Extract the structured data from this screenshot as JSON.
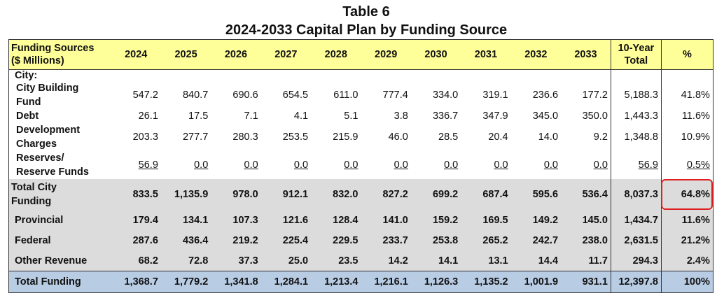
{
  "title": {
    "line1": "Table 6",
    "line2": "2024-2033 Capital Plan by Funding Source"
  },
  "header": {
    "label": [
      "Funding Sources",
      "($ Millions)"
    ],
    "years": [
      "2024",
      "2025",
      "2026",
      "2027",
      "2028",
      "2029",
      "2030",
      "2031",
      "2032",
      "2033"
    ],
    "total": [
      "10-Year",
      "Total"
    ],
    "pct": "%"
  },
  "city_label": "City:",
  "city_rows": [
    {
      "label": [
        "City Building",
        "Fund"
      ],
      "values": [
        "547.2",
        "840.7",
        "690.6",
        "654.5",
        "611.0",
        "777.4",
        "334.0",
        "319.1",
        "236.6",
        "177.2"
      ],
      "total": "5,188.3",
      "pct": "41.8%",
      "underline": false
    },
    {
      "label": [
        "Debt"
      ],
      "values": [
        "26.1",
        "17.5",
        "7.1",
        "4.1",
        "5.1",
        "3.8",
        "336.7",
        "347.9",
        "345.0",
        "350.0"
      ],
      "total": "1,443.3",
      "pct": "11.6%",
      "underline": false
    },
    {
      "label": [
        "Development",
        "Charges"
      ],
      "values": [
        "203.3",
        "277.7",
        "280.3",
        "253.5",
        "215.9",
        "46.0",
        "28.5",
        "20.4",
        "14.0",
        "9.2"
      ],
      "total": "1,348.8",
      "pct": "10.9%",
      "underline": false
    },
    {
      "label": [
        "Reserves/",
        "Reserve Funds"
      ],
      "values": [
        "56.9",
        "0.0",
        "0.0",
        "0.0",
        "0.0",
        "0.0",
        "0.0",
        "0.0",
        "0.0",
        "0.0"
      ],
      "total": "56.9",
      "pct": "0.5%",
      "underline": true
    }
  ],
  "total_city": {
    "label": [
      "Total City",
      "Funding"
    ],
    "values": [
      "833.5",
      "1,135.9",
      "978.0",
      "912.1",
      "832.0",
      "827.2",
      "699.2",
      "687.4",
      "595.6",
      "536.4"
    ],
    "total": "8,037.3",
    "pct": "64.8%",
    "highlighted": true
  },
  "other_rows": [
    {
      "label": [
        "Provincial"
      ],
      "values": [
        "179.4",
        "134.1",
        "107.3",
        "121.6",
        "128.4",
        "141.0",
        "159.2",
        "169.5",
        "149.2",
        "145.0"
      ],
      "total": "1,434.7",
      "pct": "11.6%"
    },
    {
      "label": [
        "Federal"
      ],
      "values": [
        "287.6",
        "436.4",
        "219.2",
        "225.4",
        "229.5",
        "233.7",
        "253.8",
        "265.2",
        "242.7",
        "238.0"
      ],
      "total": "2,631.5",
      "pct": "21.2%"
    },
    {
      "label": [
        "Other Revenue"
      ],
      "values": [
        "68.2",
        "72.8",
        "37.3",
        "25.0",
        "23.5",
        "14.2",
        "14.1",
        "13.1",
        "14.4",
        "11.7"
      ],
      "total": "294.3",
      "pct": "2.4%"
    }
  ],
  "grand_total": {
    "label": [
      "Total Funding"
    ],
    "values": [
      "1,368.7",
      "1,779.2",
      "1,341.8",
      "1,284.1",
      "1,213.4",
      "1,216.1",
      "1,126.3",
      "1,135.2",
      "1,001.9",
      "931.1"
    ],
    "total": "12,397.8",
    "pct": "100%"
  },
  "colors": {
    "header_bg": "#ffff99",
    "subtotal_bg": "#dcdcdc",
    "total_bg": "#b8cce4",
    "highlight": "#e02020"
  }
}
